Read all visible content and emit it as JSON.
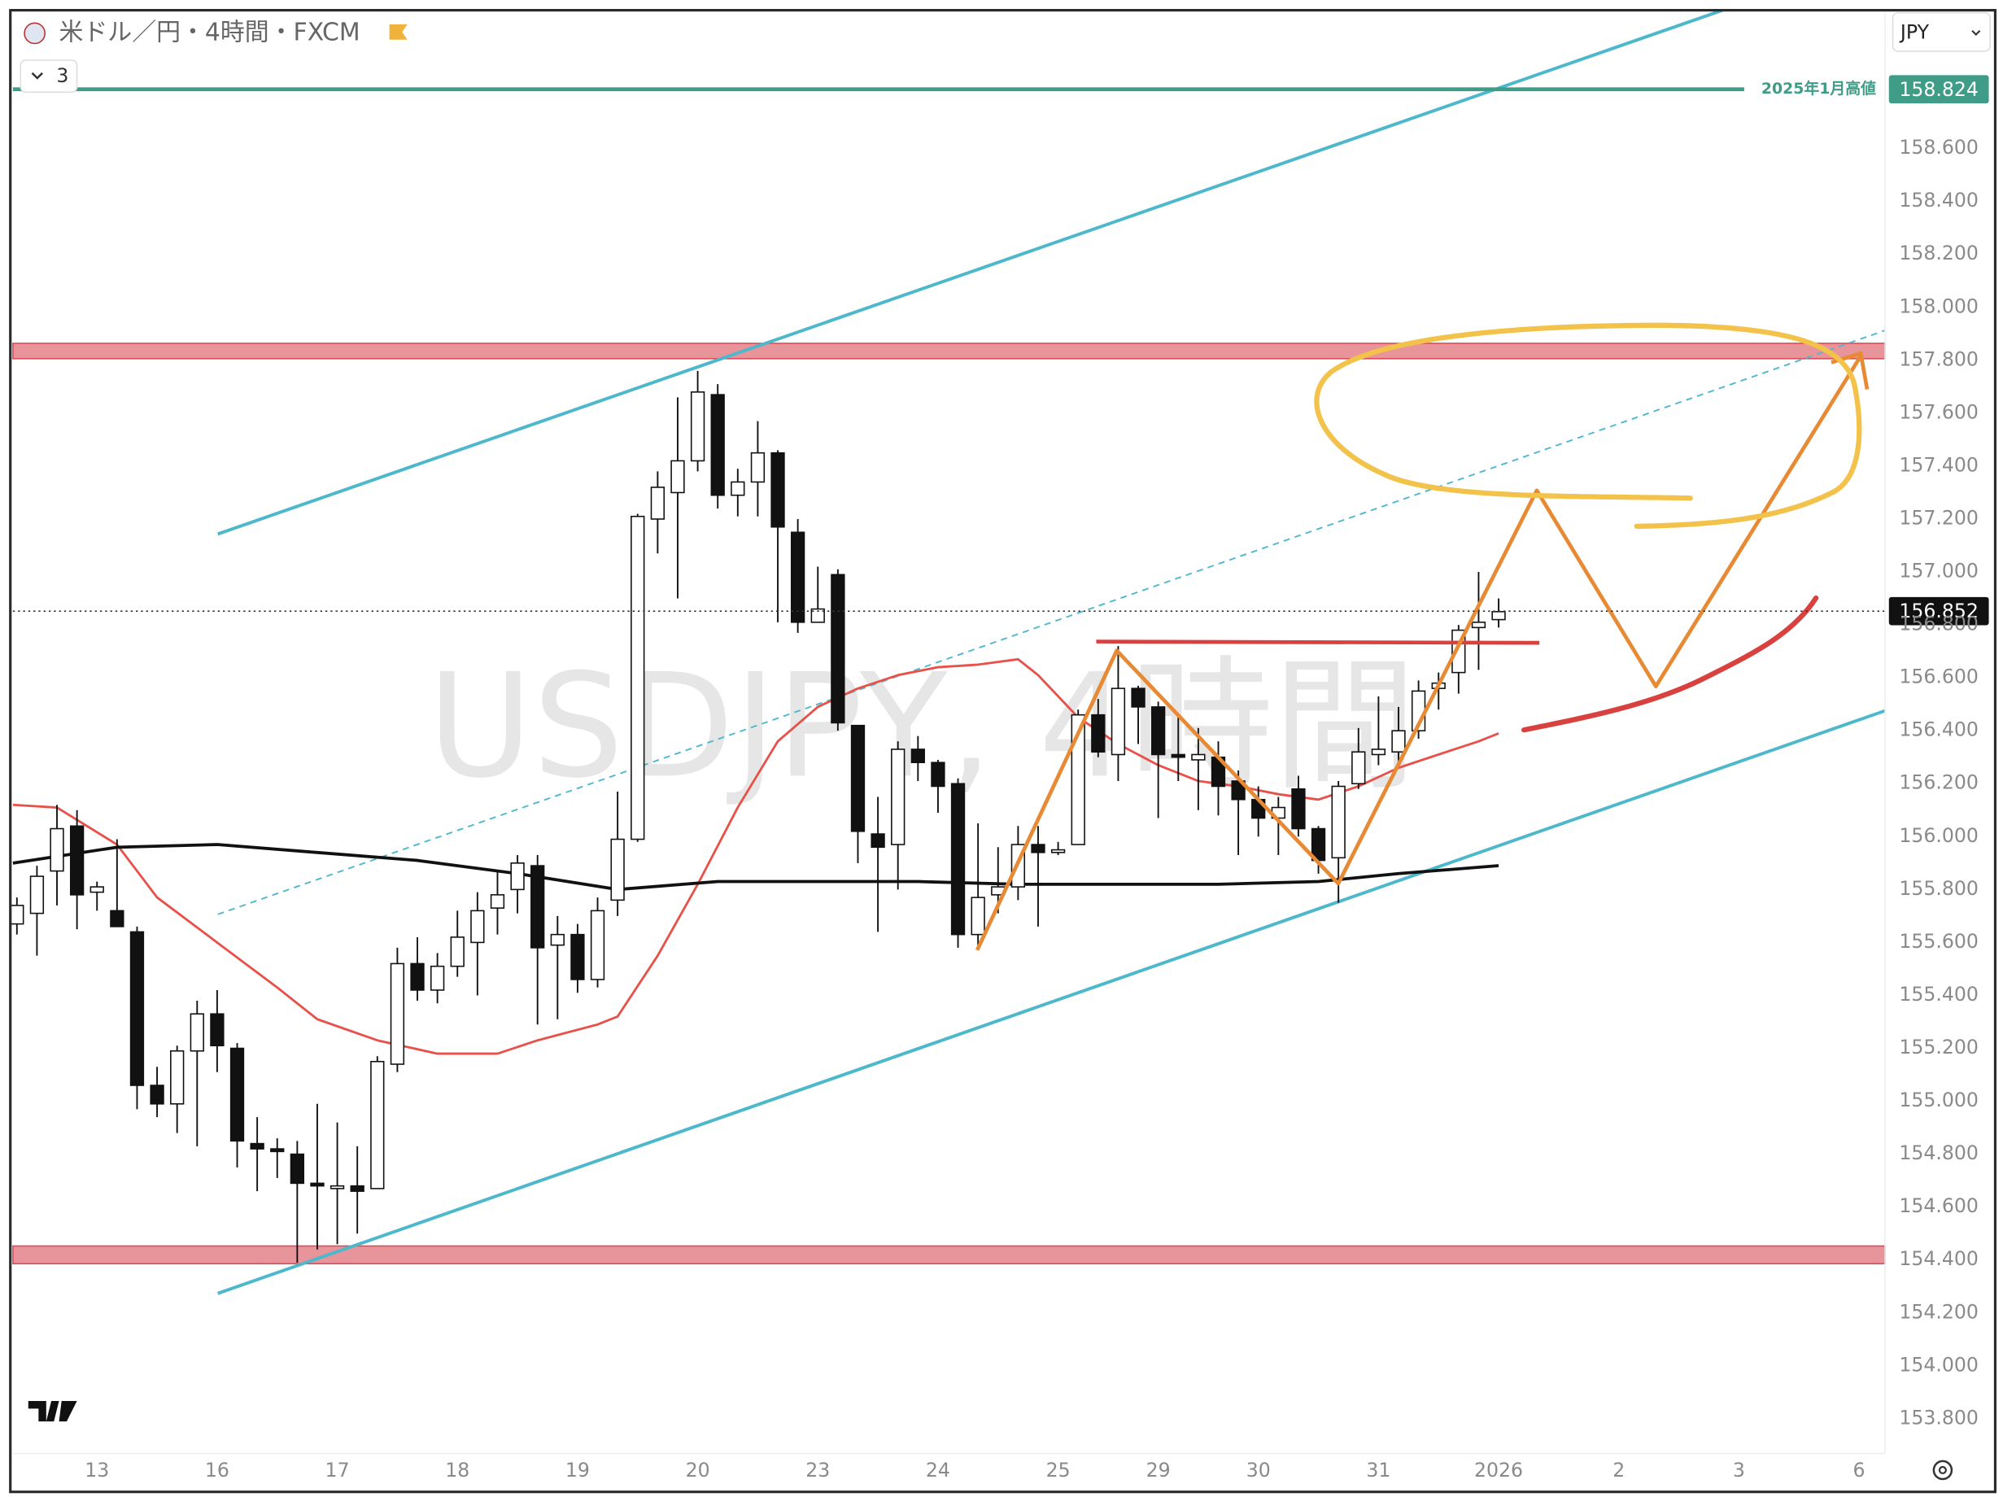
{
  "chart_data": {
    "type": "candlestick",
    "title": "米ドル／円・4時間・FXCM",
    "indicator_count": 3,
    "currency": "JPY",
    "watermark": "USDJPY, 4時間",
    "xlim": [
      -0.2,
      93.3
    ],
    "ylim": [
      153.669,
      159.113
    ],
    "xticks": [
      {
        "value": 4,
        "label": "13"
      },
      {
        "value": 10,
        "label": "16"
      },
      {
        "value": 16,
        "label": "17"
      },
      {
        "value": 22,
        "label": "18"
      },
      {
        "value": 28,
        "label": "19"
      },
      {
        "value": 34,
        "label": "20"
      },
      {
        "value": 40,
        "label": "23"
      },
      {
        "value": 46,
        "label": "24"
      },
      {
        "value": 52,
        "label": "25"
      },
      {
        "value": 57,
        "label": "29"
      },
      {
        "value": 62,
        "label": "30"
      },
      {
        "value": 68,
        "label": "31"
      },
      {
        "value": 74,
        "label": "2026"
      },
      {
        "value": 80,
        "label": "2"
      },
      {
        "value": 86,
        "label": "3"
      },
      {
        "value": 92,
        "label": "6"
      }
    ],
    "yticks": [
      {
        "value": 153.8,
        "label": "153.800"
      },
      {
        "value": 154.0,
        "label": "154.000"
      },
      {
        "value": 154.2,
        "label": "154.200"
      },
      {
        "value": 154.4,
        "label": "154.400"
      },
      {
        "value": 154.6,
        "label": "154.600"
      },
      {
        "value": 154.8,
        "label": "154.800"
      },
      {
        "value": 155.0,
        "label": "155.000"
      },
      {
        "value": 155.2,
        "label": "155.200"
      },
      {
        "value": 155.4,
        "label": "155.400"
      },
      {
        "value": 155.6,
        "label": "155.600"
      },
      {
        "value": 155.8,
        "label": "155.800"
      },
      {
        "value": 156.0,
        "label": "156.000"
      },
      {
        "value": 156.2,
        "label": "156.200"
      },
      {
        "value": 156.4,
        "label": "156.400"
      },
      {
        "value": 156.6,
        "label": "156.600"
      },
      {
        "value": 156.8,
        "label": "156.800"
      },
      {
        "value": 157.0,
        "label": "157.000"
      },
      {
        "value": 157.2,
        "label": "157.200"
      },
      {
        "value": 157.4,
        "label": "157.400"
      },
      {
        "value": 157.6,
        "label": "157.600"
      },
      {
        "value": 157.8,
        "label": "157.800"
      },
      {
        "value": 158.0,
        "label": "158.000"
      },
      {
        "value": 158.2,
        "label": "158.200"
      },
      {
        "value": 158.4,
        "label": "158.400"
      },
      {
        "value": 158.6,
        "label": "158.600"
      }
    ],
    "x": [
      0,
      1,
      2,
      3,
      4,
      5,
      6,
      7,
      8,
      9,
      10,
      11,
      12,
      13,
      14,
      15,
      16,
      17,
      18,
      19,
      20,
      21,
      22,
      23,
      24,
      25,
      26,
      27,
      28,
      29,
      30,
      31,
      32,
      33,
      34,
      35,
      36,
      37,
      38,
      39,
      40,
      41,
      42,
      43,
      44,
      45,
      46,
      47,
      48,
      49,
      50,
      51,
      52,
      53,
      54,
      55,
      56,
      57,
      58,
      59,
      60,
      61,
      62,
      63,
      64,
      65,
      66,
      67,
      68,
      69,
      70,
      71,
      72,
      73,
      74
    ],
    "open": [
      155.67,
      155.71,
      155.87,
      156.04,
      155.79,
      155.72,
      155.64,
      155.06,
      154.99,
      155.19,
      155.33,
      155.2,
      154.84,
      154.82,
      154.8,
      154.69,
      154.67,
      154.68,
      154.67,
      155.14,
      155.52,
      155.42,
      155.51,
      155.6,
      155.73,
      155.8,
      155.89,
      155.59,
      155.63,
      155.46,
      155.76,
      155.99,
      157.2,
      157.3,
      157.42,
      157.67,
      157.29,
      157.34,
      157.45,
      157.15,
      156.81,
      156.99,
      156.42,
      156.01,
      155.97,
      156.33,
      156.28,
      156.2,
      155.63,
      155.78,
      155.81,
      155.97,
      155.94,
      155.97,
      156.46,
      156.31,
      156.56,
      156.49,
      156.31,
      156.29,
      156.3,
      156.21,
      156.14,
      156.07,
      156.18,
      156.03,
      155.92,
      156.2,
      156.31,
      156.32,
      156.4,
      156.56,
      156.62,
      156.79,
      156.82
    ],
    "high": [
      155.77,
      155.89,
      156.12,
      156.1,
      155.83,
      155.99,
      155.66,
      155.13,
      155.21,
      155.38,
      155.42,
      155.22,
      154.94,
      154.86,
      154.85,
      154.99,
      154.92,
      154.83,
      155.17,
      155.58,
      155.62,
      155.56,
      155.72,
      155.79,
      155.87,
      155.93,
      155.93,
      155.7,
      155.67,
      155.77,
      156.17,
      157.22,
      157.38,
      157.66,
      157.76,
      157.71,
      157.39,
      157.57,
      157.46,
      157.2,
      157.02,
      157.01,
      156.42,
      156.15,
      156.36,
      156.38,
      156.29,
      156.22,
      156.05,
      155.96,
      156.04,
      156.04,
      155.98,
      156.48,
      156.52,
      156.72,
      156.57,
      156.51,
      156.45,
      156.41,
      156.36,
      156.25,
      156.19,
      156.15,
      156.23,
      156.04,
      156.21,
      156.41,
      156.53,
      156.49,
      156.59,
      156.62,
      156.8,
      157.0,
      156.9
    ],
    "low": [
      155.63,
      155.55,
      155.74,
      155.65,
      155.72,
      155.67,
      154.97,
      154.94,
      154.88,
      154.83,
      155.11,
      154.75,
      154.66,
      154.71,
      154.39,
      154.44,
      154.46,
      154.5,
      154.67,
      155.11,
      155.38,
      155.37,
      155.47,
      155.4,
      155.63,
      155.71,
      155.29,
      155.31,
      155.41,
      155.43,
      155.7,
      155.98,
      157.07,
      156.9,
      157.38,
      157.24,
      157.21,
      157.21,
      156.81,
      156.77,
      156.81,
      156.4,
      155.9,
      155.64,
      155.8,
      156.21,
      156.09,
      155.58,
      155.59,
      155.71,
      155.76,
      155.66,
      155.93,
      155.97,
      156.3,
      156.21,
      156.35,
      156.07,
      156.21,
      156.1,
      156.08,
      155.93,
      156.0,
      155.93,
      156.0,
      155.86,
      155.75,
      156.18,
      156.27,
      156.28,
      156.37,
      156.48,
      156.54,
      156.63,
      156.79
    ],
    "close": [
      155.74,
      155.85,
      156.03,
      155.78,
      155.81,
      155.66,
      155.06,
      154.99,
      155.19,
      155.33,
      155.21,
      154.85,
      154.82,
      154.81,
      154.69,
      154.68,
      154.68,
      154.66,
      155.15,
      155.52,
      155.42,
      155.51,
      155.62,
      155.72,
      155.78,
      155.9,
      155.58,
      155.63,
      155.46,
      155.72,
      155.99,
      157.21,
      157.32,
      157.42,
      157.68,
      157.29,
      157.34,
      157.45,
      157.17,
      156.81,
      156.86,
      156.43,
      156.02,
      155.96,
      156.33,
      156.28,
      156.19,
      155.63,
      155.77,
      155.81,
      155.97,
      155.94,
      155.95,
      156.46,
      156.32,
      156.56,
      156.49,
      156.31,
      156.3,
      156.31,
      156.19,
      156.14,
      156.07,
      156.11,
      156.03,
      155.91,
      156.19,
      156.32,
      156.33,
      156.4,
      156.55,
      156.58,
      156.78,
      156.81,
      156.85
    ],
    "up_color": "#ffffff",
    "down_color": "#111111",
    "lines": [
      {
        "color": "#e8514a",
        "x": [
          -0.2,
          2,
          5,
          7,
          10,
          13,
          15,
          18,
          21,
          24,
          26,
          29,
          30,
          32,
          34,
          36,
          38,
          40,
          42,
          44,
          46,
          48,
          50,
          51,
          53,
          55,
          57,
          59,
          61,
          63,
          65,
          67,
          69,
          71,
          73,
          74
        ],
        "values": [
          156.12,
          156.11,
          155.97,
          155.77,
          155.6,
          155.43,
          155.31,
          155.23,
          155.18,
          155.18,
          155.23,
          155.29,
          155.32,
          155.55,
          155.82,
          156.11,
          156.36,
          156.49,
          156.56,
          156.61,
          156.64,
          156.65,
          156.67,
          156.61,
          156.45,
          156.35,
          156.27,
          156.21,
          156.19,
          156.16,
          156.14,
          156.19,
          156.26,
          156.31,
          156.36,
          156.39
        ]
      },
      {
        "color": "#111111",
        "x": [
          -0.2,
          5,
          10,
          15,
          20,
          25,
          30,
          35,
          40,
          45,
          50,
          55,
          60,
          65,
          69,
          74
        ],
        "values": [
          155.9,
          155.96,
          155.97,
          155.94,
          155.91,
          155.86,
          155.8,
          155.83,
          155.83,
          155.83,
          155.82,
          155.82,
          155.82,
          155.83,
          155.86,
          155.89
        ]
      }
    ],
    "zones": [
      {
        "color": "#e0707a",
        "range": [
          157.806,
          157.864
        ]
      },
      {
        "color": "#e0707a",
        "range": [
          154.386,
          154.453
        ]
      }
    ],
    "levels": [
      {
        "value": 158.824,
        "label": "2025年1月高値",
        "color": "#3f9c86"
      }
    ],
    "last_price": 156.852
  }
}
